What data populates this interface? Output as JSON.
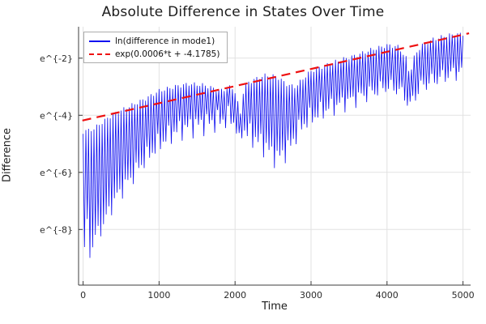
{
  "figure": {
    "title": "Absolute Difference in States Over Time",
    "xlabel": "Time",
    "ylabel": "Difference"
  },
  "chart_data": {
    "type": "line",
    "title": "Absolute Difference in States Over Time",
    "xlabel": "Time",
    "ylabel": "Difference",
    "y_scale": "ln",
    "grid": true,
    "legend_position": "top-left",
    "xlim": [
      -60,
      5100
    ],
    "ylim_ln": [
      -9.95,
      -0.9
    ],
    "x_ticks": [
      0,
      1000,
      2000,
      3000,
      4000,
      5000
    ],
    "y_ticks": [
      {
        "ln": -2,
        "label": "e^{-2}"
      },
      {
        "ln": -4,
        "label": "e^{-4}"
      },
      {
        "ln": -6,
        "label": "e^{-6}"
      },
      {
        "ln": -8,
        "label": "e^{-8}"
      }
    ],
    "colors": {
      "grid": "#e2e2e2",
      "frame": "#3c3c3c",
      "tick_text": "#2b2b2b",
      "blue_series": "#0d0df0",
      "red_fit": "#ee1111"
    },
    "series": [
      {
        "name": "ln(difference in mode1)",
        "color": "#0d0df0",
        "style": "solid",
        "render": "oscillation-envelope",
        "t_range": [
          0,
          5000
        ],
        "cycles": 140,
        "envelope": {
          "comment": "piecewise-linear envelopes of the rapidly oscillating |difference| read off the plot, values are ln(|difference|)",
          "t": [
            0,
            40,
            80,
            150,
            250,
            350,
            450,
            600,
            800,
            1000,
            1200,
            1400,
            1600,
            1800,
            1950,
            2030,
            2055,
            2090,
            2150,
            2250,
            2400,
            2550,
            2700,
            2800,
            2900,
            3000,
            3200,
            3400,
            3600,
            3800,
            4000,
            4150,
            4250,
            4300,
            4350,
            4450,
            4600,
            4800,
            5000
          ],
          "upper_ln": [
            -4.65,
            -4.5,
            -4.55,
            -4.45,
            -4.25,
            -4.05,
            -3.9,
            -3.7,
            -3.45,
            -3.15,
            -3.0,
            -2.9,
            -2.95,
            -3.15,
            -3.0,
            -3.3,
            -4.5,
            -3.3,
            -2.9,
            -2.75,
            -2.6,
            -2.65,
            -2.95,
            -3.0,
            -2.7,
            -2.45,
            -2.25,
            -2.05,
            -1.9,
            -1.7,
            -1.55,
            -1.6,
            -2.0,
            -2.6,
            -2.0,
            -1.55,
            -1.35,
            -1.2,
            -1.15
          ],
          "lower_ln": [
            -9.6,
            -7.4,
            -8.9,
            -8.3,
            -7.9,
            -7.3,
            -6.8,
            -6.3,
            -5.6,
            -5.0,
            -4.6,
            -4.4,
            -4.3,
            -4.2,
            -4.1,
            -4.5,
            -5.1,
            -4.5,
            -4.6,
            -4.8,
            -5.1,
            -5.5,
            -5.2,
            -4.7,
            -4.3,
            -4.1,
            -3.8,
            -3.6,
            -3.4,
            -3.2,
            -3.0,
            -3.1,
            -3.4,
            -3.7,
            -3.4,
            -3.0,
            -2.8,
            -2.6,
            -2.45
          ]
        }
      },
      {
        "name": "exp(0.0006*t + -4.1785)",
        "color": "#ee1111",
        "style": "dashed",
        "model": "ln(y) = 0.0006*t + -4.1785",
        "slope": 0.0006,
        "intercept": -4.1785,
        "t_range": [
          -10,
          5080
        ]
      }
    ]
  }
}
